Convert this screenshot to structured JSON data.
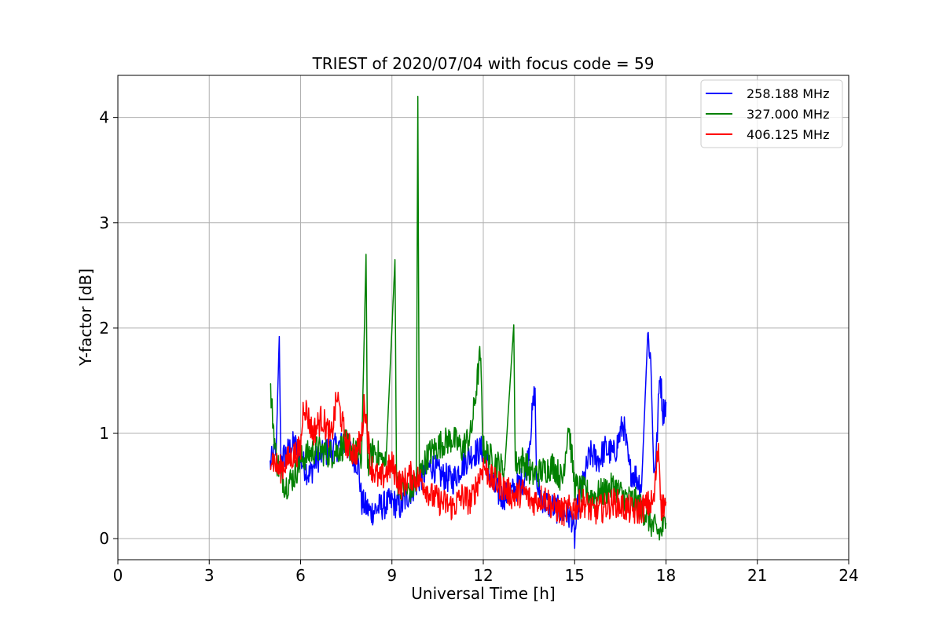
{
  "chart_data": {
    "type": "line",
    "title": "TRIEST of 2020/07/04 with focus code = 59",
    "xlabel": "Universal Time [h]",
    "ylabel": "Y-factor [dB]",
    "xlim": [
      0,
      24
    ],
    "ylim": [
      -0.2,
      4.4
    ],
    "xticks": [
      0,
      3,
      6,
      9,
      12,
      15,
      18,
      21,
      24
    ],
    "yticks": [
      0,
      1,
      2,
      3,
      4
    ],
    "grid": true,
    "legend_position": "top-right",
    "series": [
      {
        "name": "258.188 MHz",
        "color": "#0000ff",
        "points": [
          [
            5.0,
            0.7
          ],
          [
            5.2,
            0.85
          ],
          [
            5.3,
            1.92
          ],
          [
            5.35,
            0.75
          ],
          [
            5.5,
            0.8
          ],
          [
            5.8,
            0.9
          ],
          [
            6.0,
            0.75
          ],
          [
            6.3,
            0.6
          ],
          [
            6.5,
            0.75
          ],
          [
            7.0,
            0.85
          ],
          [
            7.5,
            0.9
          ],
          [
            7.9,
            0.7
          ],
          [
            8.0,
            0.35
          ],
          [
            8.3,
            0.25
          ],
          [
            8.6,
            0.3
          ],
          [
            9.0,
            0.35
          ],
          [
            9.3,
            0.3
          ],
          [
            9.6,
            0.45
          ],
          [
            10.0,
            0.6
          ],
          [
            10.3,
            0.7
          ],
          [
            10.6,
            0.6
          ],
          [
            11.0,
            0.55
          ],
          [
            11.3,
            0.7
          ],
          [
            11.6,
            0.8
          ],
          [
            12.0,
            0.85
          ],
          [
            12.3,
            0.5
          ],
          [
            12.6,
            0.4
          ],
          [
            13.0,
            0.45
          ],
          [
            13.4,
            0.6
          ],
          [
            13.7,
            1.43
          ],
          [
            13.75,
            0.5
          ],
          [
            14.0,
            0.35
          ],
          [
            14.3,
            0.3
          ],
          [
            14.6,
            0.25
          ],
          [
            14.9,
            0.2
          ],
          [
            15.0,
            0.0
          ],
          [
            15.1,
            0.3
          ],
          [
            15.3,
            0.55
          ],
          [
            15.5,
            0.8
          ],
          [
            15.8,
            0.75
          ],
          [
            16.0,
            0.85
          ],
          [
            16.3,
            0.8
          ],
          [
            16.6,
            1.1
          ],
          [
            16.8,
            0.65
          ],
          [
            17.0,
            0.6
          ],
          [
            17.2,
            0.5
          ],
          [
            17.4,
            1.95
          ],
          [
            17.5,
            1.7
          ],
          [
            17.6,
            0.6
          ],
          [
            17.7,
            0.9
          ],
          [
            17.8,
            1.6
          ],
          [
            17.9,
            1.2
          ],
          [
            18.0,
            1.3
          ]
        ]
      },
      {
        "name": "327.000 MHz",
        "color": "#008000",
        "points": [
          [
            5.0,
            1.45
          ],
          [
            5.2,
            0.75
          ],
          [
            5.5,
            0.5
          ],
          [
            5.8,
            0.6
          ],
          [
            6.0,
            0.75
          ],
          [
            6.5,
            0.85
          ],
          [
            7.0,
            0.8
          ],
          [
            7.5,
            0.9
          ],
          [
            8.0,
            0.75
          ],
          [
            8.15,
            2.7
          ],
          [
            8.2,
            0.7
          ],
          [
            8.4,
            0.85
          ],
          [
            8.8,
            0.7
          ],
          [
            9.1,
            2.65
          ],
          [
            9.15,
            0.55
          ],
          [
            9.5,
            0.45
          ],
          [
            9.8,
            0.5
          ],
          [
            9.85,
            4.2
          ],
          [
            9.9,
            0.6
          ],
          [
            10.2,
            0.8
          ],
          [
            10.6,
            0.9
          ],
          [
            11.0,
            0.95
          ],
          [
            11.3,
            0.85
          ],
          [
            11.6,
            1.0
          ],
          [
            11.9,
            1.75
          ],
          [
            12.0,
            0.85
          ],
          [
            12.3,
            0.75
          ],
          [
            12.7,
            0.65
          ],
          [
            13.0,
            2.03
          ],
          [
            13.05,
            0.7
          ],
          [
            13.3,
            0.75
          ],
          [
            13.6,
            0.6
          ],
          [
            14.0,
            0.65
          ],
          [
            14.3,
            0.7
          ],
          [
            14.6,
            0.55
          ],
          [
            14.8,
            1.1
          ],
          [
            15.0,
            0.5
          ],
          [
            15.3,
            0.45
          ],
          [
            15.6,
            0.4
          ],
          [
            16.0,
            0.45
          ],
          [
            16.3,
            0.5
          ],
          [
            16.6,
            0.4
          ],
          [
            17.0,
            0.35
          ],
          [
            17.3,
            0.25
          ],
          [
            17.6,
            0.1
          ],
          [
            17.8,
            0.05
          ],
          [
            18.0,
            0.15
          ]
        ]
      },
      {
        "name": "406.125 MHz",
        "color": "#ff0000",
        "points": [
          [
            5.0,
            0.8
          ],
          [
            5.3,
            0.65
          ],
          [
            5.6,
            0.75
          ],
          [
            6.0,
            0.85
          ],
          [
            6.1,
            1.3
          ],
          [
            6.4,
            1.0
          ],
          [
            6.7,
            1.15
          ],
          [
            7.0,
            0.95
          ],
          [
            7.2,
            1.35
          ],
          [
            7.5,
            0.9
          ],
          [
            7.8,
            0.8
          ],
          [
            8.0,
            0.95
          ],
          [
            8.1,
            1.3
          ],
          [
            8.3,
            0.7
          ],
          [
            8.6,
            0.55
          ],
          [
            9.0,
            0.7
          ],
          [
            9.3,
            0.5
          ],
          [
            9.6,
            0.6
          ],
          [
            10.0,
            0.55
          ],
          [
            10.3,
            0.4
          ],
          [
            10.6,
            0.35
          ],
          [
            11.0,
            0.3
          ],
          [
            11.3,
            0.4
          ],
          [
            11.6,
            0.35
          ],
          [
            12.0,
            0.7
          ],
          [
            12.3,
            0.55
          ],
          [
            12.6,
            0.5
          ],
          [
            13.0,
            0.4
          ],
          [
            13.3,
            0.45
          ],
          [
            13.6,
            0.35
          ],
          [
            14.0,
            0.4
          ],
          [
            14.3,
            0.3
          ],
          [
            14.6,
            0.25
          ],
          [
            15.0,
            0.3
          ],
          [
            15.3,
            0.35
          ],
          [
            15.6,
            0.25
          ],
          [
            16.0,
            0.3
          ],
          [
            16.3,
            0.35
          ],
          [
            16.6,
            0.3
          ],
          [
            17.0,
            0.25
          ],
          [
            17.3,
            0.3
          ],
          [
            17.6,
            0.35
          ],
          [
            17.75,
            0.9
          ],
          [
            17.85,
            0.3
          ],
          [
            18.0,
            0.35
          ]
        ]
      }
    ]
  }
}
